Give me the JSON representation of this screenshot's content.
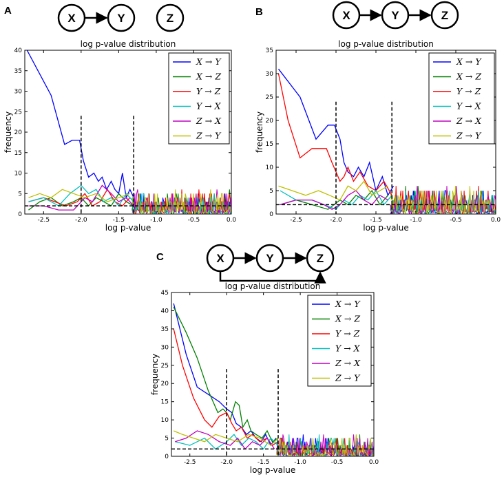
{
  "panels": [
    {
      "letter": "A",
      "nodes": [
        "X",
        "Y",
        "Z"
      ]
    },
    {
      "letter": "B",
      "nodes": [
        "X",
        "Y",
        "Z"
      ]
    },
    {
      "letter": "C",
      "nodes": [
        "X",
        "Y",
        "Z"
      ]
    }
  ],
  "chart_data": [
    {
      "type": "line",
      "panel": "A",
      "title": "log p-value distribution",
      "xlabel": "log p-value",
      "ylabel": "frequency",
      "xlim": [
        -2.75,
        0.0
      ],
      "ylim": [
        0,
        40
      ],
      "xticks": [
        "-2.5",
        "-2.0",
        "-1.5",
        "-1.0",
        "-0.5",
        "0.0"
      ],
      "yticks": [
        "0",
        "5",
        "10",
        "15",
        "20",
        "25",
        "30",
        "35",
        "40"
      ],
      "vlines": [
        -2.0,
        -1.3
      ],
      "vline_top": 24,
      "hline": 2,
      "legend_position": "upper right",
      "series": [
        {
          "name": "X → Y",
          "color": "#0000ff",
          "x": [
            -2.72,
            -2.4,
            -2.22,
            -2.12,
            -2.02,
            -1.97,
            -1.9,
            -1.83,
            -1.77,
            -1.72,
            -1.66,
            -1.6,
            -1.55,
            -1.5,
            -1.45,
            -1.4,
            -1.35,
            -1.3
          ],
          "y": [
            40,
            29,
            17,
            18,
            18,
            13,
            9,
            10,
            8,
            9,
            6,
            8,
            6,
            5,
            10,
            4,
            6,
            4
          ]
        },
        {
          "name": "X → Z",
          "color": "#007f00",
          "x": [
            -2.7,
            -2.55,
            -2.4,
            -2.25,
            -2.1,
            -2.0,
            -1.9,
            -1.8,
            -1.7,
            -1.6,
            -1.5,
            -1.4,
            -1.3
          ],
          "y": [
            1,
            3,
            4,
            2,
            3,
            4,
            2,
            4,
            3,
            2,
            5,
            3,
            2
          ]
        },
        {
          "name": "Y → Z",
          "color": "#ff0000",
          "x": [
            -2.7,
            -2.5,
            -2.35,
            -2.2,
            -2.05,
            -1.95,
            -1.85,
            -1.75,
            -1.65,
            -1.55,
            -1.45,
            -1.35
          ],
          "y": [
            3,
            4,
            3,
            2,
            3,
            5,
            2,
            3,
            6,
            3,
            2,
            4
          ]
        },
        {
          "name": "Y → X",
          "color": "#00bfbf",
          "x": [
            -2.7,
            -2.5,
            -2.3,
            -2.15,
            -2.0,
            -1.9,
            -1.8,
            -1.7,
            -1.6,
            -1.5,
            -1.4,
            -1.3
          ],
          "y": [
            3,
            4,
            2,
            5,
            7,
            5,
            6,
            3,
            4,
            2,
            5,
            3
          ]
        },
        {
          "name": "Z → X",
          "color": "#bf00bf",
          "x": [
            -2.7,
            -2.5,
            -2.3,
            -2.1,
            -1.95,
            -1.85,
            -1.72,
            -1.6,
            -1.5,
            -1.4,
            -1.3
          ],
          "y": [
            2,
            2,
            1,
            1,
            4,
            3,
            7,
            5,
            3,
            4,
            2
          ]
        },
        {
          "name": "Z → Y",
          "color": "#bfbf00",
          "x": [
            -2.7,
            -2.55,
            -2.4,
            -2.25,
            -2.1,
            -1.95,
            -1.8,
            -1.65,
            -1.5,
            -1.35
          ],
          "y": [
            4,
            5,
            4,
            6,
            5,
            4,
            5,
            3,
            4,
            5
          ]
        }
      ]
    },
    {
      "type": "line",
      "panel": "B",
      "title": "log p-value distribution",
      "xlabel": "log p-value",
      "ylabel": "frequency",
      "xlim": [
        -2.75,
        0.0
      ],
      "ylim": [
        0,
        35
      ],
      "xticks": [
        "-2.5",
        "-2.0",
        "-1.5",
        "-1.0",
        "-0.5",
        "0.0"
      ],
      "yticks": [
        "0",
        "5",
        "10",
        "15",
        "20",
        "25",
        "30",
        "35"
      ],
      "vlines": [
        -2.0,
        -1.3
      ],
      "vline_top": 24,
      "hline": 2,
      "legend_position": "upper right",
      "series": [
        {
          "name": "X → Y",
          "color": "#0000ff",
          "x": [
            -2.72,
            -2.45,
            -2.25,
            -2.1,
            -2.02,
            -1.95,
            -1.9,
            -1.85,
            -1.78,
            -1.72,
            -1.65,
            -1.58,
            -1.5,
            -1.42,
            -1.35,
            -1.28
          ],
          "y": [
            31,
            25,
            16,
            19,
            19,
            16,
            11,
            9,
            8,
            10,
            8,
            11,
            5,
            8,
            4,
            6
          ]
        },
        {
          "name": "X → Z",
          "color": "#007f00",
          "x": [
            -2.7,
            -2.5,
            -2.3,
            -2.1,
            -1.95,
            -1.85,
            -1.75,
            -1.65,
            -1.55,
            -1.45,
            -1.35
          ],
          "y": [
            2,
            3,
            2,
            1,
            3,
            2,
            4,
            3,
            5,
            2,
            4
          ]
        },
        {
          "name": "Y → Z",
          "color": "#ff0000",
          "x": [
            -2.72,
            -2.6,
            -2.45,
            -2.3,
            -2.22,
            -2.12,
            -2.05,
            -2.0,
            -1.95,
            -1.9,
            -1.85,
            -1.78,
            -1.7,
            -1.6,
            -1.5,
            -1.4,
            -1.3
          ],
          "y": [
            30,
            20,
            12,
            14,
            14,
            14,
            11,
            9,
            7,
            8,
            10,
            7,
            9,
            6,
            5,
            7,
            4
          ]
        },
        {
          "name": "Y → X",
          "color": "#00bfbf",
          "x": [
            -2.7,
            -2.5,
            -2.3,
            -2.15,
            -2.0,
            -1.9,
            -1.8,
            -1.7,
            -1.6,
            -1.5,
            -1.4,
            -1.3
          ],
          "y": [
            5,
            3,
            3,
            2,
            1,
            3,
            2,
            4,
            3,
            5,
            2,
            4
          ]
        },
        {
          "name": "Z → X",
          "color": "#bf00bf",
          "x": [
            -2.7,
            -2.5,
            -2.3,
            -2.15,
            -2.05,
            -1.95,
            -1.85,
            -1.75,
            -1.65,
            -1.55,
            -1.45,
            -1.35
          ],
          "y": [
            2,
            3,
            3,
            2,
            1,
            2,
            4,
            5,
            3,
            2,
            4,
            3
          ]
        },
        {
          "name": "Z → Y",
          "color": "#bfbf00",
          "x": [
            -2.72,
            -2.55,
            -2.38,
            -2.22,
            -2.08,
            -1.95,
            -1.85,
            -1.75,
            -1.65,
            -1.55,
            -1.45,
            -1.35
          ],
          "y": [
            6,
            5,
            4,
            5,
            4,
            3,
            6,
            5,
            7,
            4,
            5,
            6
          ]
        }
      ]
    },
    {
      "type": "line",
      "panel": "C",
      "title": "log p-value distribution",
      "xlabel": "log p-value",
      "ylabel": "frequency",
      "xlim": [
        -2.75,
        0.0
      ],
      "ylim": [
        0,
        45
      ],
      "xticks": [
        "-2.5",
        "-2.0",
        "-1.5",
        "-1.0",
        "-0.5",
        "0.0"
      ],
      "yticks": [
        "0",
        "5",
        "10",
        "15",
        "20",
        "25",
        "30",
        "35",
        "40",
        "45"
      ],
      "vlines": [
        -2.0,
        -1.3
      ],
      "vline_top": 24,
      "hline": 2,
      "legend_position": "upper right",
      "series": [
        {
          "name": "X → Y",
          "color": "#0000ff",
          "x": [
            -2.72,
            -2.55,
            -2.4,
            -2.25,
            -2.1,
            -2.0,
            -1.93,
            -1.87,
            -1.8,
            -1.73,
            -1.67,
            -1.6,
            -1.53,
            -1.47,
            -1.4,
            -1.33
          ],
          "y": [
            42,
            28,
            19,
            17,
            15,
            13,
            12,
            9,
            8,
            6,
            7,
            5,
            4,
            6,
            3,
            5
          ]
        },
        {
          "name": "X → Z",
          "color": "#007f00",
          "x": [
            -2.72,
            -2.55,
            -2.4,
            -2.25,
            -2.12,
            -2.05,
            -2.0,
            -1.95,
            -1.88,
            -1.83,
            -1.78,
            -1.72,
            -1.67,
            -1.6,
            -1.52,
            -1.45,
            -1.38,
            -1.3
          ],
          "y": [
            41,
            34,
            27,
            18,
            12,
            13,
            12,
            10,
            15,
            14,
            8,
            10,
            7,
            6,
            5,
            7,
            4,
            5
          ]
        },
        {
          "name": "Y → Z",
          "color": "#ff0000",
          "x": [
            -2.72,
            -2.6,
            -2.45,
            -2.3,
            -2.2,
            -2.1,
            -2.0,
            -1.93,
            -1.87,
            -1.8,
            -1.72,
            -1.65,
            -1.55,
            -1.45,
            -1.38,
            -1.3
          ],
          "y": [
            35,
            25,
            16,
            10,
            8,
            11,
            12,
            9,
            7,
            8,
            5,
            6,
            4,
            5,
            3,
            4
          ]
        },
        {
          "name": "Y → X",
          "color": "#00bfbf",
          "x": [
            -2.7,
            -2.5,
            -2.3,
            -2.15,
            -2.0,
            -1.9,
            -1.8,
            -1.7,
            -1.6,
            -1.5,
            -1.4,
            -1.3
          ],
          "y": [
            4,
            3,
            5,
            2,
            4,
            6,
            3,
            5,
            4,
            2,
            5,
            3
          ]
        },
        {
          "name": "Z → X",
          "color": "#bf00bf",
          "x": [
            -2.7,
            -2.55,
            -2.4,
            -2.25,
            -2.1,
            -1.95,
            -1.85,
            -1.75,
            -1.65,
            -1.55,
            -1.45,
            -1.35
          ],
          "y": [
            4,
            5,
            7,
            6,
            4,
            3,
            5,
            2,
            4,
            3,
            5,
            2
          ]
        },
        {
          "name": "Z → Y",
          "color": "#bfbf00",
          "x": [
            -2.72,
            -2.6,
            -2.45,
            -2.3,
            -2.15,
            -2.0,
            -1.85,
            -1.7,
            -1.55,
            -1.4,
            -1.3
          ],
          "y": [
            7,
            6,
            5,
            4,
            6,
            5,
            4,
            6,
            5,
            3,
            5
          ]
        }
      ]
    }
  ]
}
